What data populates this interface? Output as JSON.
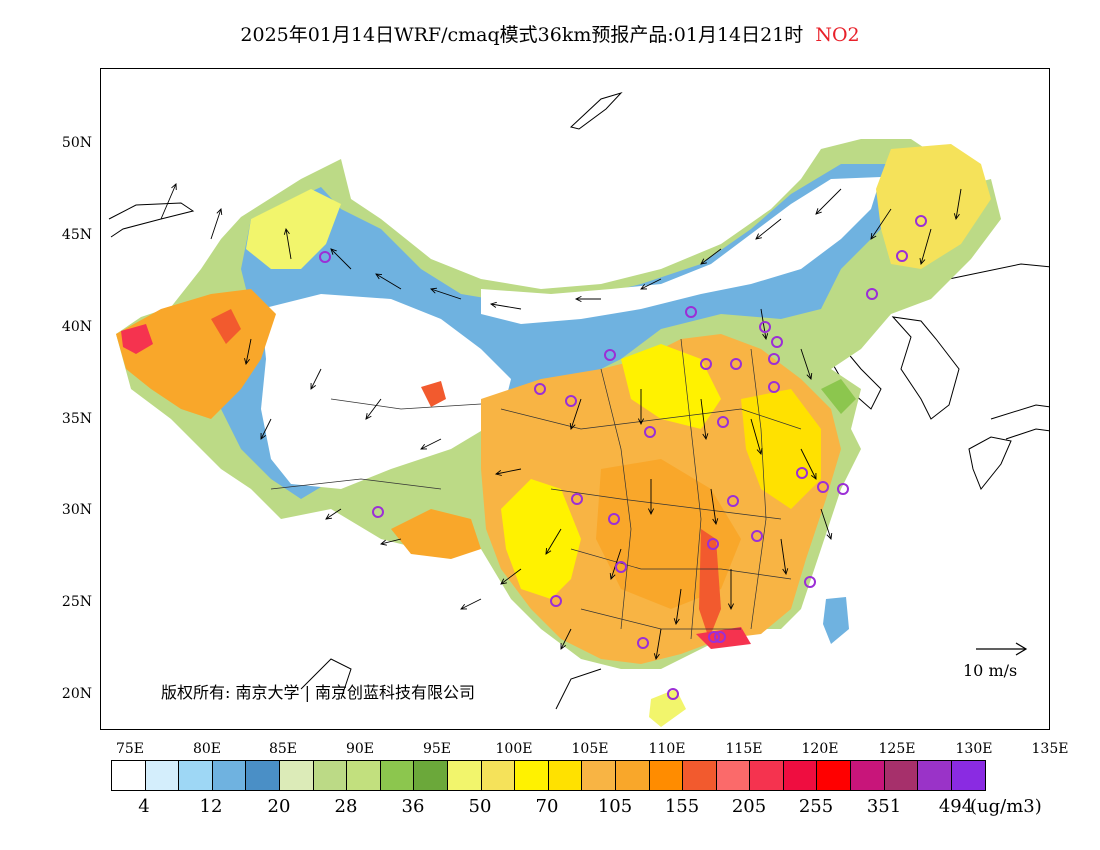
{
  "title": {
    "main": "2025年01月14日WRF/cmaq模式36km预报产品:01月14日21时",
    "species": "NO2",
    "species_color": "#e8212a"
  },
  "axes": {
    "x_ticks": [
      "75E",
      "80E",
      "85E",
      "90E",
      "95E",
      "100E",
      "105E",
      "110E",
      "115E",
      "120E",
      "125E",
      "130E",
      "135E"
    ],
    "y_ticks": [
      "50N",
      "45N",
      "40N",
      "35N",
      "30N",
      "25N",
      "20N"
    ]
  },
  "map": {
    "copyright": "版权所有: 南京大学 | 南京创蓝科技有限公司",
    "wind_reference": "10 m/s"
  },
  "legend": {
    "colors": [
      "#ffffff",
      "#d4eefc",
      "#9ed7f5",
      "#6fb2e0",
      "#4a8fc6",
      "#dcebb8",
      "#bcda86",
      "#c2e07e",
      "#8cc64e",
      "#6ba83a",
      "#f2f56c",
      "#f5e25a",
      "#fff200",
      "#ffe100",
      "#f8b444",
      "#f9a72a",
      "#ff8c00",
      "#f25a2e",
      "#fb6a6a",
      "#f5334f",
      "#ef0d40",
      "#ff0000",
      "#c8157a",
      "#a6306b",
      "#9a33c8",
      "#8a2be2"
    ],
    "labels": [
      "4",
      "12",
      "20",
      "28",
      "36",
      "50",
      "70",
      "105",
      "155",
      "205",
      "255",
      "351",
      "494"
    ],
    "unit": "(ug/m3)"
  },
  "cities_color": "#9b2fd6"
}
